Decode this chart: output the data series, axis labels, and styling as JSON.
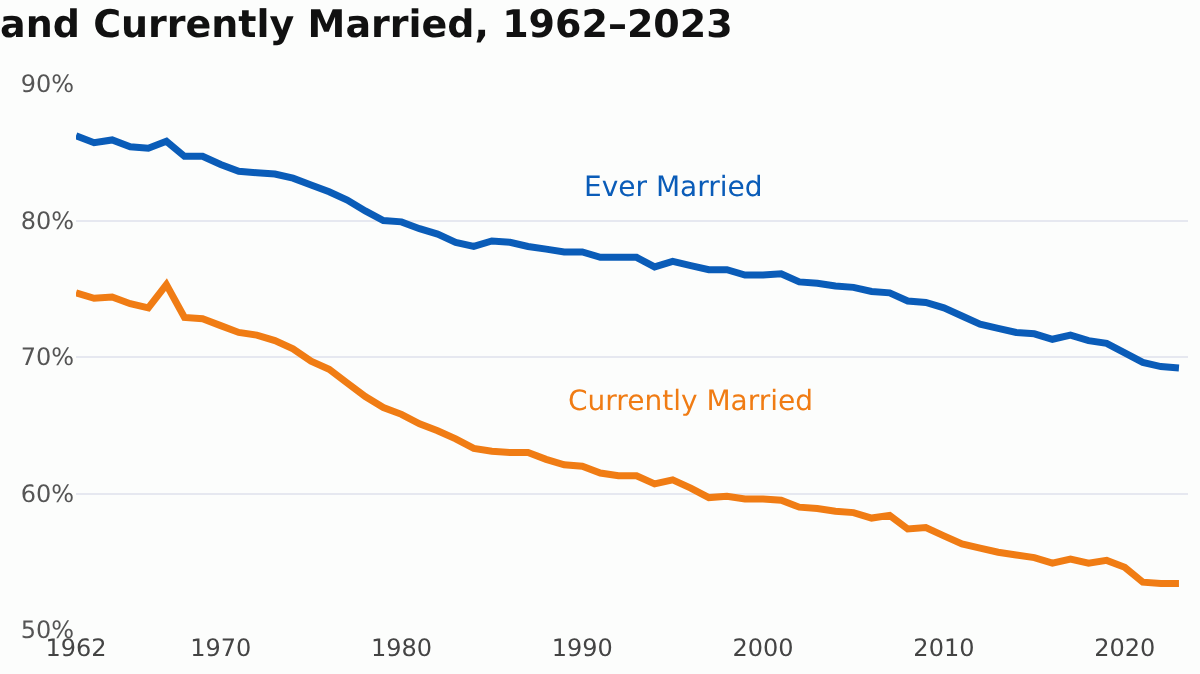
{
  "chart_data": {
    "type": "line",
    "title": "and Currently Married, 1962–2023",
    "x": [
      1962,
      1963,
      1964,
      1965,
      1966,
      1967,
      1968,
      1969,
      1970,
      1971,
      1972,
      1973,
      1974,
      1975,
      1976,
      1977,
      1978,
      1979,
      1980,
      1981,
      1982,
      1983,
      1984,
      1985,
      1986,
      1987,
      1988,
      1989,
      1990,
      1991,
      1992,
      1993,
      1994,
      1995,
      1996,
      1997,
      1998,
      1999,
      2000,
      2001,
      2002,
      2003,
      2004,
      2005,
      2006,
      2007,
      2008,
      2009,
      2010,
      2011,
      2012,
      2013,
      2014,
      2015,
      2016,
      2017,
      2018,
      2019,
      2020,
      2021,
      2022,
      2023
    ],
    "series": [
      {
        "name": "Ever Married",
        "color": "#0a5cb8",
        "values": [
          86.2,
          85.7,
          85.9,
          85.4,
          85.3,
          85.8,
          84.7,
          84.7,
          84.1,
          83.6,
          83.5,
          83.4,
          83.1,
          82.6,
          82.1,
          81.5,
          80.7,
          80.0,
          79.9,
          79.4,
          79.0,
          78.4,
          78.1,
          78.5,
          78.4,
          78.1,
          77.9,
          77.7,
          77.7,
          77.3,
          77.3,
          77.3,
          76.6,
          77.0,
          76.7,
          76.4,
          76.4,
          76.0,
          76.0,
          76.1,
          75.5,
          75.4,
          75.2,
          75.1,
          74.8,
          74.7,
          74.1,
          74.0,
          73.6,
          73.0,
          72.4,
          72.1,
          71.8,
          71.7,
          71.3,
          71.6,
          71.2,
          71.0,
          70.3,
          69.6,
          69.3,
          69.2
        ]
      },
      {
        "name": "Currently Married",
        "color": "#f07c14",
        "values": [
          74.7,
          74.3,
          74.4,
          73.9,
          73.6,
          75.3,
          72.9,
          72.8,
          72.3,
          71.8,
          71.6,
          71.2,
          70.6,
          69.7,
          69.1,
          68.1,
          67.1,
          66.3,
          65.8,
          65.1,
          64.6,
          64.0,
          63.3,
          63.1,
          63.0,
          63.0,
          62.5,
          62.1,
          62.0,
          61.5,
          61.3,
          61.3,
          60.7,
          61.0,
          60.4,
          59.7,
          59.8,
          59.6,
          59.6,
          59.5,
          59.0,
          58.9,
          58.7,
          58.6,
          58.2,
          58.4,
          57.4,
          57.5,
          56.9,
          56.3,
          56.0,
          55.7,
          55.5,
          55.3,
          54.9,
          55.2,
          54.9,
          55.1,
          54.6,
          53.5,
          53.4,
          53.4
        ]
      }
    ],
    "xlim": [
      1962,
      2023.5
    ],
    "xticks": [
      1962,
      1970,
      1980,
      1990,
      2000,
      2010,
      2020
    ],
    "ylim": [
      50,
      90
    ],
    "yticks": [
      {
        "value": 50,
        "label": "50%"
      },
      {
        "value": 60,
        "label": "60%"
      },
      {
        "value": 70,
        "label": "70%"
      },
      {
        "value": 80,
        "label": "80%"
      },
      {
        "value": 90,
        "label": "90%"
      }
    ],
    "grid": "y",
    "legend": false,
    "marker": "none",
    "line_style": "solid"
  }
}
